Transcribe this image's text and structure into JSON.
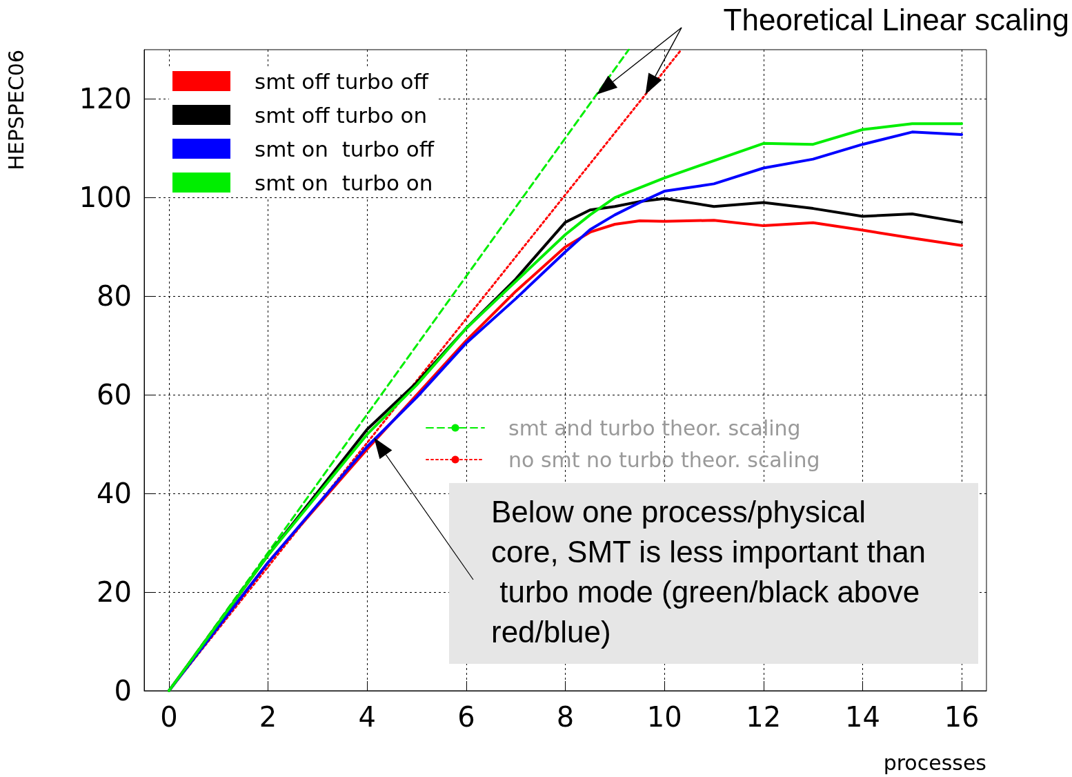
{
  "chart_data": {
    "type": "line",
    "xlabel": "processes",
    "ylabel": "HEPSPEC06",
    "x": [
      0,
      2,
      4,
      5,
      6,
      7,
      8,
      8.5,
      9,
      9.5,
      10,
      11,
      12,
      13,
      14,
      15,
      16
    ],
    "series": [
      {
        "name": "smt off turbo off",
        "color": "#ff0000",
        "values": [
          0,
          26,
          49,
          60,
          71,
          81,
          90,
          93,
          94.6,
          95.3,
          95.2,
          95.4,
          94.3,
          94.9,
          93.4,
          91.8,
          90.3
        ]
      },
      {
        "name": "smt off turbo on",
        "color": "#000000",
        "values": [
          0,
          27.5,
          53,
          62.5,
          73.5,
          83.5,
          95,
          97.5,
          98.2,
          99.2,
          99.8,
          98.2,
          99,
          97.8,
          96.2,
          96.7,
          95
        ]
      },
      {
        "name": "smt on  turbo off",
        "color": "#0000ff",
        "values": [
          0,
          26,
          49.5,
          59.5,
          70.5,
          79.5,
          89,
          93.5,
          96.5,
          99,
          101.3,
          102.8,
          106,
          107.8,
          110.8,
          113.3,
          112.8
        ]
      },
      {
        "name": "smt on  turbo on",
        "color": "#00ee00",
        "values": [
          0,
          27.5,
          52,
          62,
          73.5,
          83,
          92.5,
          96.5,
          100,
          102,
          104,
          107.5,
          111,
          110.8,
          113.8,
          115,
          115
        ]
      },
      {
        "name": "smt and turbo theor. scaling",
        "color": "#00ee00",
        "x": [
          0,
          9.28
        ],
        "values": [
          0,
          130
        ],
        "line_style": "dashed"
      },
      {
        "name": "no smt no turbo theor. scaling",
        "color": "#ff0000",
        "x": [
          0,
          10.34
        ],
        "values": [
          0,
          130
        ],
        "line_style": "dotted"
      }
    ],
    "xlim": [
      -0.5,
      16.5
    ],
    "xticks": [
      0,
      2,
      4,
      6,
      8,
      10,
      12,
      14,
      16
    ],
    "ylim": [
      0,
      130
    ],
    "yticks": [
      0,
      20,
      40,
      60,
      80,
      100,
      120
    ],
    "grid": true,
    "legend": "top left",
    "marker": "none",
    "line_style": "solid",
    "annotations": [
      "Theoretical Linear scaling",
      "Below one process/physical core, SMT is less important than turbo mode (green/black above red/blue)"
    ]
  }
}
